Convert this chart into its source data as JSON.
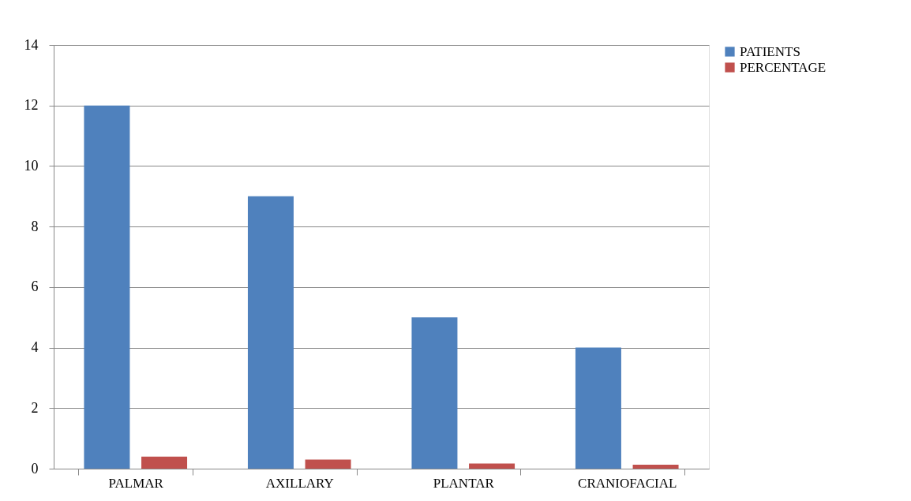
{
  "chart_data": {
    "type": "bar",
    "categories": [
      "PALMAR",
      "AXILLARY",
      "PLANTAR",
      "CRANIOFACIAL"
    ],
    "series": [
      {
        "name": "PATIENTS",
        "color": "#4f81bd",
        "values": [
          12,
          9,
          5,
          4
        ]
      },
      {
        "name": "PERCENTAGE",
        "color": "#c0504d",
        "values": [
          0.4,
          0.3,
          0.17,
          0.13
        ]
      }
    ],
    "ylim": [
      0,
      14
    ],
    "yticks": [
      0,
      2,
      4,
      6,
      8,
      10,
      12,
      14
    ],
    "grid": "y",
    "legend": "right"
  }
}
